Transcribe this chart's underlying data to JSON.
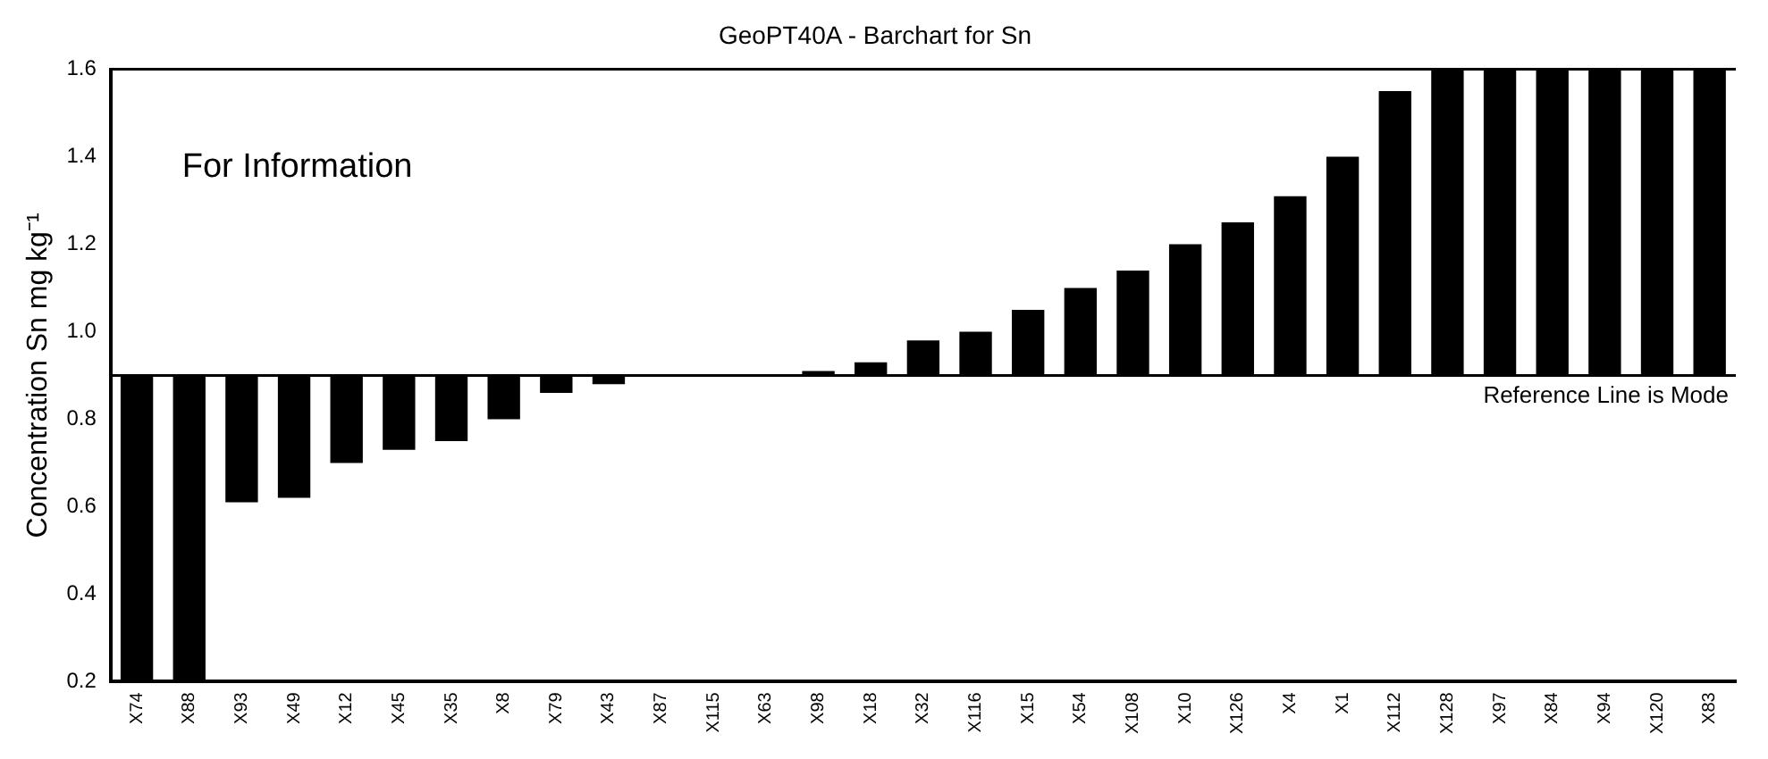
{
  "chart_data": {
    "type": "bar",
    "title": "GeoPT40A - Barchart for Sn",
    "ylabel": "Concentration Sn mg kg⁻¹",
    "categories": [
      "X74",
      "X88",
      "X93",
      "X49",
      "X12",
      "X45",
      "X35",
      "X8",
      "X79",
      "X43",
      "X87",
      "X115",
      "X63",
      "X98",
      "X18",
      "X32",
      "X116",
      "X15",
      "X54",
      "X108",
      "X10",
      "X126",
      "X4",
      "X1",
      "X112",
      "X128",
      "X97",
      "X84",
      "X94",
      "X120",
      "X83"
    ],
    "base": [
      0.9,
      0.9,
      0.9,
      0.9,
      0.9,
      0.9,
      0.9,
      0.9,
      0.9,
      0.9,
      null,
      null,
      null,
      0.9,
      0.9,
      0.9,
      0.9,
      0.9,
      0.9,
      0.9,
      0.9,
      0.9,
      0.9,
      0.9,
      0.9,
      0.9,
      0.9,
      0.9,
      0.9,
      0.9,
      0.9
    ],
    "values": [
      -0.7,
      -0.7,
      -0.29,
      -0.28,
      -0.2,
      -0.17,
      -0.15,
      -0.1,
      -0.04,
      -0.02,
      null,
      null,
      null,
      0.01,
      0.03,
      0.08,
      0.1,
      0.15,
      0.2,
      0.24,
      0.3,
      0.35,
      0.41,
      0.5,
      0.65,
      0.7,
      0.7,
      0.7,
      0.7,
      0.7,
      0.7
    ],
    "color": "#000000",
    "ylim": [
      0.2,
      1.6
    ],
    "yticks": [
      0.2,
      0.4,
      0.6,
      0.8,
      {
        "value": 1.0,
        "label": "1.0"
      },
      1.2,
      1.4,
      1.6
    ],
    "ref_lines": [
      {
        "axis": "y",
        "value": 0.9,
        "label": "Reference Line is Mode",
        "color": "#000000"
      }
    ],
    "annotations": [
      "For Information"
    ]
  }
}
